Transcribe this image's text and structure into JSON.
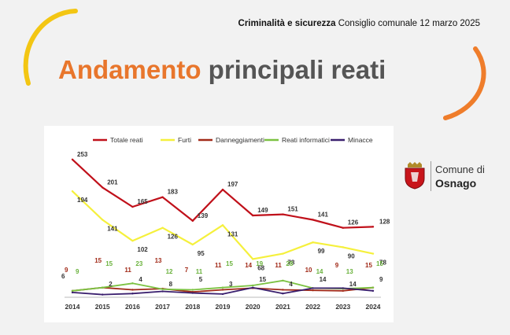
{
  "header": {
    "bold": "Criminalità e sicurezza",
    "rest": "Consiglio comunale 12 marzo 2025"
  },
  "title": {
    "accent": "Andamento",
    "rest": "principali reati"
  },
  "logo": {
    "line1": "Comune di",
    "line2": "Osnago"
  },
  "colors": {
    "accent_orange": "#e8762c",
    "arc_yellow": "#f3c613",
    "arc_orange": "#ef7d2b"
  },
  "chart_data": {
    "type": "line",
    "title": "",
    "xlabel": "",
    "ylabel": "",
    "x": [
      "2014",
      "2015",
      "2016",
      "2017",
      "2018",
      "2019",
      "2020",
      "2021",
      "2022",
      "2023",
      "2024"
    ],
    "ylim": [
      0,
      260
    ],
    "grid": false,
    "legend": "top",
    "series": [
      {
        "name": "Totale reati",
        "color": "#c0101a",
        "labelColor": "#333333",
        "values": [
          253,
          201,
          165,
          183,
          139,
          197,
          149,
          151,
          141,
          126,
          128
        ]
      },
      {
        "name": "Furti",
        "color": "#f5f03c",
        "labelColor": "#333333",
        "values": [
          194,
          141,
          102,
          126,
          95,
          131,
          68,
          78,
          99,
          90,
          78
        ]
      },
      {
        "name": "Danneggiamenti",
        "color": "#a12a18",
        "labelColor": "#a12a18",
        "values": [
          9,
          15,
          11,
          13,
          7,
          11,
          14,
          11,
          10,
          9,
          15
        ]
      },
      {
        "name": "Reati informatici",
        "color": "#7cc242",
        "labelColor": "#6ab23c",
        "values": [
          9,
          15,
          23,
          12,
          11,
          15,
          19,
          28,
          14,
          13,
          15
        ]
      },
      {
        "name": "Minacce",
        "color": "#3a1f6e",
        "labelColor": "#333333",
        "values": [
          6,
          2,
          4,
          8,
          5,
          3,
          15,
          4,
          14,
          14,
          9
        ]
      }
    ]
  }
}
